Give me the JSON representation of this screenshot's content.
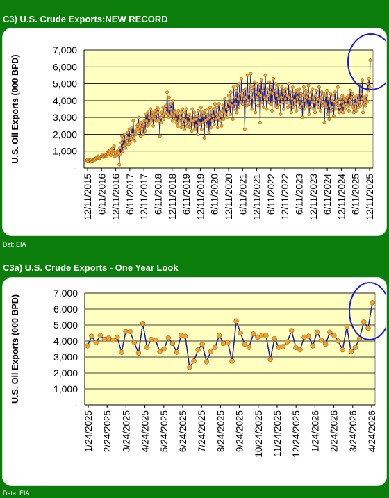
{
  "charts": [
    {
      "title": "C3) U.S. Crude Exports:NEW RECORD",
      "source": "Dat: EIA"
    },
    {
      "title": "C3a) U.S. Crude Exports - One Year Look",
      "source": "Data:  EIA"
    }
  ],
  "colors": {
    "page_background": "#0a7d0a",
    "plot_background": "#ffffc0",
    "series_line": "#1a1aa0",
    "marker_fill": "#f4a030",
    "highlight_ellipse": "#1a1adc"
  },
  "chart_data": [
    {
      "type": "line",
      "title": "C3) U.S. Crude Exports:NEW RECORD",
      "xlabel": "",
      "ylabel": "U.S. Oil Exports (000 BPD)",
      "ylim": [
        0,
        7000
      ],
      "ytick_labels": [
        "-",
        "1,000",
        "2,000",
        "3,000",
        "4,000",
        "5,000",
        "6,000",
        "7,000"
      ],
      "xtick_labels": [
        "12/11/2015",
        "6/11/2016",
        "12/11/2016",
        "6/11/2017",
        "12/11/2017",
        "6/11/2018",
        "12/11/2018",
        "6/11/2019",
        "12/11/2019",
        "6/11/2020",
        "12/11/2020",
        "6/11/2021",
        "12/11/2021",
        "6/11/2022",
        "12/11/2022",
        "6/11/2023",
        "12/11/2023",
        "6/11/2024",
        "12/11/2024",
        "6/11/2025",
        "12/11/2025"
      ],
      "x_start": "2015-12-11",
      "x_end": "2026-04-24",
      "grid": true,
      "legend": "none",
      "annotation": "blue ellipse around latest value",
      "series": [
        {
          "values": [
            450,
            520,
            400,
            480,
            430,
            450,
            380,
            500,
            420,
            460,
            450,
            480,
            550,
            500,
            600,
            650,
            580,
            700,
            620,
            550,
            600,
            650,
            700,
            750,
            700,
            650,
            720,
            800,
            750,
            700,
            680,
            900,
            850,
            1000,
            800,
            950,
            750,
            1100,
            900,
            1200,
            1000,
            1300,
            700,
            900,
            800,
            750,
            1000,
            850,
            900,
            200,
            1200,
            800,
            1500,
            1900,
            1000,
            1700,
            1300,
            2000,
            1200,
            1400,
            1600,
            1800,
            2100,
            1400,
            2300,
            1500,
            1800,
            1700,
            2400,
            2000,
            2800,
            1800,
            1600,
            2200,
            2000,
            2300,
            2500,
            2600,
            3000,
            2200,
            2400,
            1900,
            2700,
            2300,
            2500,
            2000,
            2600,
            2800,
            2200,
            3200,
            2800,
            2500,
            3300,
            2600,
            3000,
            2700,
            3500,
            2800,
            3100,
            3300,
            2500,
            3000,
            2900,
            3400,
            3200,
            2800,
            3600,
            3300,
            3500,
            2800,
            1900,
            3000,
            2700,
            3300,
            3100,
            3600,
            2900,
            3200,
            3500,
            3700,
            3300,
            4500,
            3200,
            3000,
            4200,
            3100,
            3500,
            3800,
            3200,
            2800,
            4000,
            3100,
            3400,
            3300,
            2900,
            2700,
            3200,
            2500,
            3400,
            2800,
            3100,
            3000,
            2400,
            3300,
            3500,
            2600,
            2900,
            2300,
            3300,
            2800,
            3500,
            2500,
            3100,
            2700,
            3200,
            2400,
            3000,
            2800,
            2200,
            3500,
            2600,
            2800,
            3300,
            2300,
            2900,
            2500,
            3100,
            2000,
            3400,
            2700,
            3000,
            2600,
            3600,
            2300,
            3300,
            2700,
            3100,
            1800,
            3400,
            2800,
            3200,
            2500,
            2900,
            3500,
            2100,
            3000,
            3600,
            2400,
            3300,
            2800,
            3100,
            3500,
            2600,
            3800,
            2900,
            3200,
            3600,
            2400,
            3000,
            3800,
            3300,
            2800,
            3100,
            2500,
            3400,
            3700,
            2900,
            3300,
            4100,
            3200,
            3600,
            3000,
            3900,
            3500,
            4300,
            3800,
            3200,
            4500,
            3700,
            4000,
            2900,
            4800,
            3500,
            4200,
            3800,
            4600,
            3300,
            4900,
            4100,
            3600,
            5000,
            4400,
            3900,
            5300,
            4300,
            3800,
            4600,
            4100,
            2300,
            4700,
            4200,
            3700,
            5500,
            4000,
            4400,
            3800,
            4900,
            5600,
            4200,
            3500,
            4600,
            4800,
            3900,
            5100,
            3300,
            4500,
            4200,
            5000,
            3700,
            4400,
            4800,
            2700,
            4300,
            5200,
            3900,
            4600,
            3600,
            4900,
            4200,
            5500,
            4100,
            3500,
            4700,
            4300,
            3900,
            5100,
            4500,
            3800,
            4800,
            3400,
            4400,
            5300,
            4000,
            4600,
            3700,
            5000,
            4300,
            3600,
            4900,
            4100,
            3800,
            4500,
            3200,
            4200,
            4800,
            3900,
            4600,
            3500,
            4400,
            4100,
            4700,
            3900,
            4300,
            3600,
            5000,
            4200,
            3700,
            4500,
            3300,
            4100,
            4800,
            3600,
            4400,
            4000,
            3800,
            4600,
            3400,
            4200,
            4500,
            3900,
            4700,
            3600,
            4100,
            4400,
            3800,
            3000,
            4300,
            4800,
            3500,
            4000,
            4600,
            4200,
            3700,
            4400,
            4900,
            3200,
            4100,
            3600,
            4500,
            3900,
            4700,
            4200,
            3500,
            3900,
            3300,
            4300,
            4600,
            3800,
            4100,
            3600,
            4800,
            4000,
            3400,
            4200,
            4500,
            3700,
            3900,
            4400,
            2700,
            3800,
            4300,
            3600,
            4600,
            3200,
            4100,
            2900,
            3700,
            4400,
            3400,
            4000,
            3600,
            4300,
            3100,
            3900,
            4500,
            3500,
            4000,
            3800,
            4800,
            3700,
            3300,
            3600,
            4100,
            3400,
            3900,
            4300,
            3300,
            3700,
            4100,
            3500,
            4000,
            3800,
            4200,
            3700,
            4300,
            3400,
            4000,
            4600,
            3800,
            4200,
            4400,
            3600,
            3300,
            3500,
            4200,
            3800,
            3400,
            4000,
            4300,
            3600,
            3900,
            4900,
            3700,
            4400,
            4100,
            5200,
            3300,
            3800,
            4200,
            4000,
            3700,
            4300,
            3900,
            5000,
            4600,
            5300,
            4800,
            6400
          ]
        }
      ]
    },
    {
      "type": "line",
      "title": "C3a) U.S. Crude Exports - One Year Look",
      "xlabel": "",
      "ylabel": "U.S. Oil Exports (000 BPD)",
      "ylim": [
        0,
        7000
      ],
      "ytick_labels": [
        "-",
        "1,000",
        "2,000",
        "3,000",
        "4,000",
        "5,000",
        "6,000",
        "7,000"
      ],
      "xtick_labels": [
        "1/24/2025",
        "2/24/2025",
        "3/24/2025",
        "4/24/2025",
        "5/24/2025",
        "6/24/2025",
        "7/24/2025",
        "8/24/2025",
        "9/24/2025",
        "10/24/2025",
        "11/24/2025",
        "12/24/2025",
        "1/24/2026",
        "2/24/2026",
        "3/24/2026",
        "4/24/2026"
      ],
      "x_start": "2025-01-24",
      "x_end": "2026-04-24",
      "grid": true,
      "legend": "none",
      "annotation": "blue ellipse around latest value",
      "series": [
        {
          "values": [
            3700,
            4300,
            3900,
            4350,
            4100,
            4200,
            4050,
            4250,
            3300,
            4600,
            4600,
            3900,
            3250,
            5100,
            3600,
            4100,
            4050,
            3350,
            3500,
            4200,
            3850,
            3300,
            4350,
            4300,
            2350,
            2750,
            3450,
            3800,
            2700,
            3350,
            3600,
            4350,
            3850,
            3900,
            2750,
            5250,
            4500,
            3800,
            3600,
            4450,
            4250,
            4350,
            4350,
            2850,
            4150,
            3600,
            3650,
            3950,
            4650,
            3600,
            3450,
            4250,
            4300,
            3700,
            4550,
            4050,
            3800,
            4550,
            4350,
            4000,
            3450,
            4900,
            3350,
            3600,
            4150,
            5200,
            4800,
            6400
          ]
        }
      ]
    }
  ]
}
